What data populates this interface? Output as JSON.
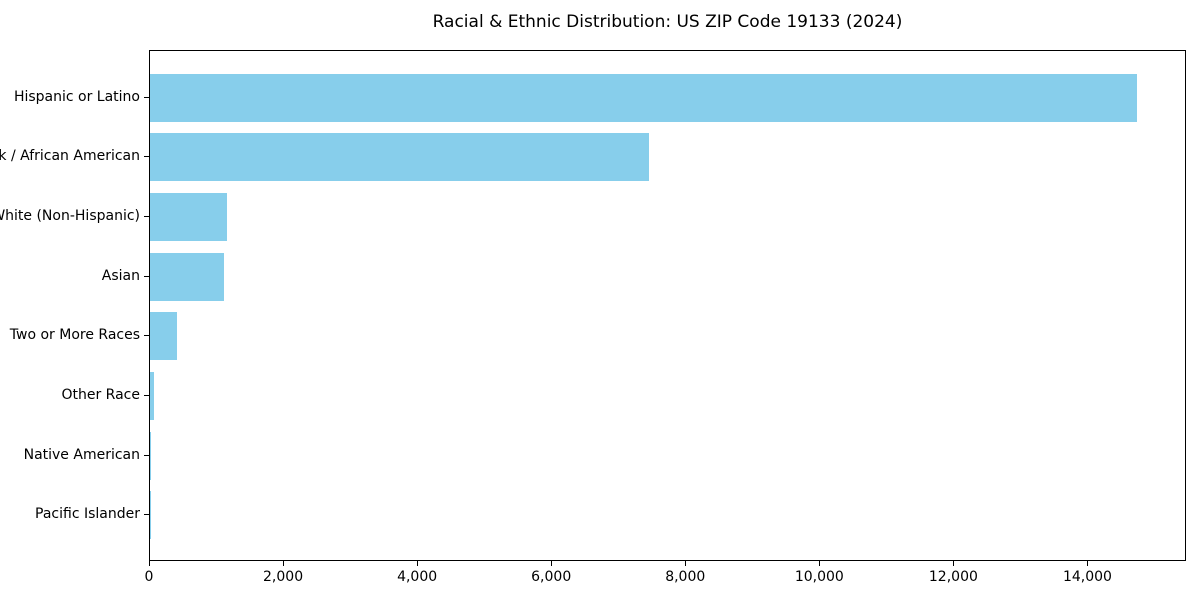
{
  "chart_data": {
    "type": "bar",
    "orientation": "horizontal",
    "title": "Racial & Ethnic Distribution: US ZIP Code 19133 (2024)",
    "categories": [
      "Hispanic or Latino",
      "Black / African American",
      "White (Non-Hispanic)",
      "Asian",
      "Two or More Races",
      "Other Race",
      "Native American",
      "Pacific Islander"
    ],
    "values": [
      14730,
      7440,
      1150,
      1100,
      400,
      60,
      15,
      5
    ],
    "xlabel": "",
    "ylabel": "",
    "xlim": [
      0,
      15470
    ],
    "xticks": [
      0,
      2000,
      4000,
      6000,
      8000,
      10000,
      12000,
      14000
    ],
    "xtick_labels": [
      "0",
      "2,000",
      "4,000",
      "6,000",
      "8,000",
      "10,000",
      "12,000",
      "14,000"
    ],
    "bar_color": "#87CEEB",
    "text_color": "#000000",
    "background_color": "#ffffff",
    "grid": false,
    "legend": false
  }
}
